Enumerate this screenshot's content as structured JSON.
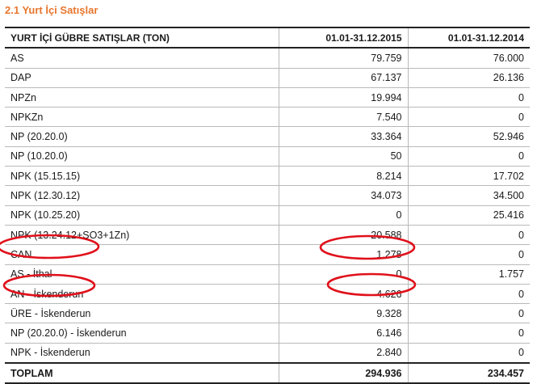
{
  "section_title": "2.1 Yurt İçi Satışlar",
  "table": {
    "headers": [
      "YURT İÇİ GÜBRE SATIŞLAR (TON)",
      "01.01-31.12.2015",
      "01.01-31.12.2014"
    ],
    "rows": [
      [
        "AS",
        "79.759",
        "76.000"
      ],
      [
        "DAP",
        "67.137",
        "26.136"
      ],
      [
        "NPZn",
        "19.994",
        "0"
      ],
      [
        "NPKZn",
        "7.540",
        "0"
      ],
      [
        "NP (20.20.0)",
        "33.364",
        "52.946"
      ],
      [
        "NP (10.20.0)",
        "50",
        "0"
      ],
      [
        "NPK (15.15.15)",
        "8.214",
        "17.702"
      ],
      [
        "NPK (12.30.12)",
        "34.073",
        "34.500"
      ],
      [
        "NPK (10.25.20)",
        "0",
        "25.416"
      ],
      [
        "NPK (13.24.12+SO3+1Zn)",
        "20.588",
        "0"
      ],
      [
        "CAN",
        "1.278",
        "0"
      ],
      [
        "AS - İthal",
        "0",
        "1.757"
      ],
      [
        "AN - İskenderun",
        "4.626",
        "0"
      ],
      [
        "ÜRE - İskenderun",
        "9.328",
        "0"
      ],
      [
        "NP (20.20.0) - İskenderun",
        "6.146",
        "0"
      ],
      [
        "NPK - İskenderun",
        "2.840",
        "0"
      ]
    ],
    "total": [
      "TOPLAM",
      "294.936",
      "234.457"
    ]
  },
  "annotations": {
    "stroke_color": "#e0101a"
  }
}
